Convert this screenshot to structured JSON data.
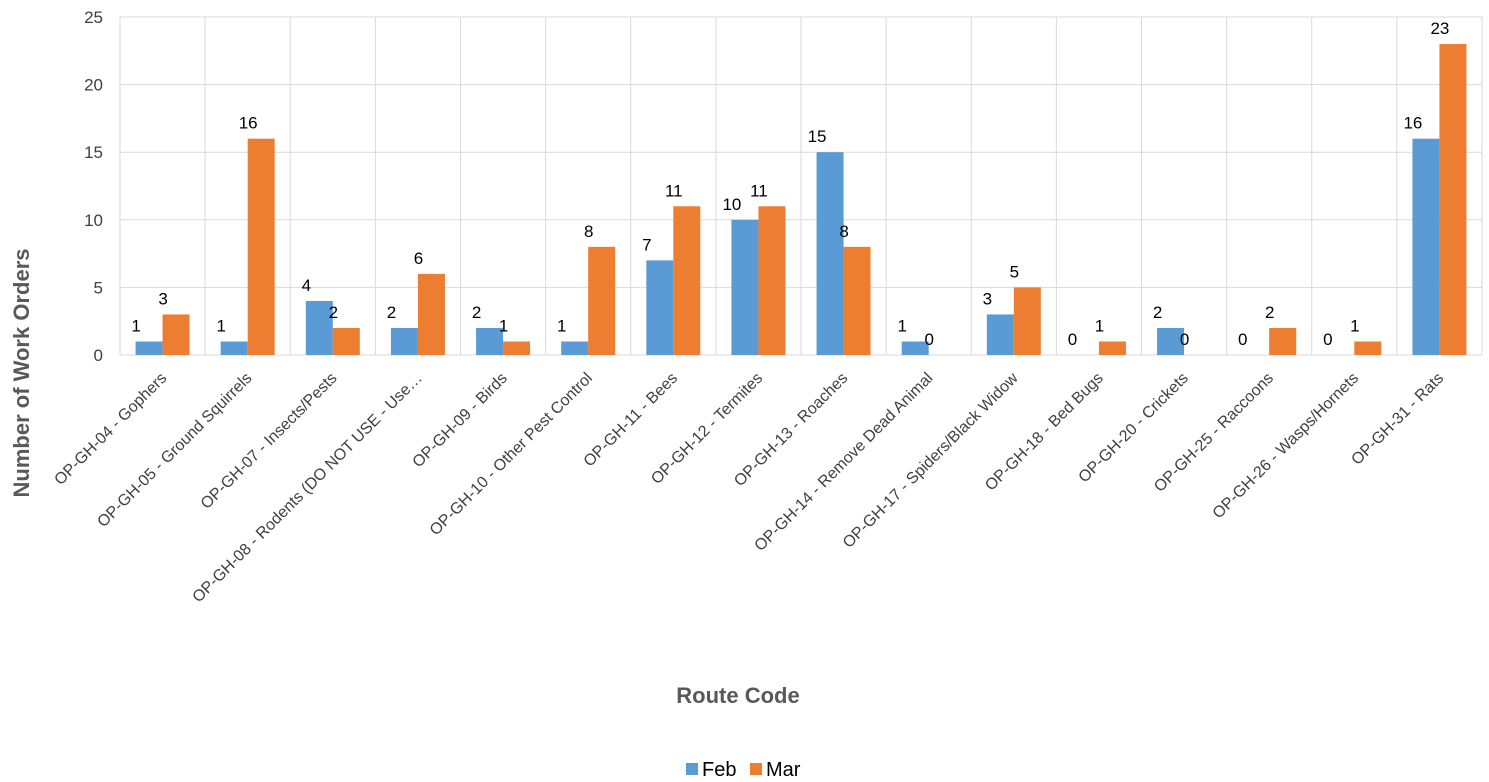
{
  "chart_data": {
    "type": "bar",
    "title": "",
    "xlabel": "Route Code",
    "ylabel": "Number of Work Orders",
    "ylim": [
      0,
      25
    ],
    "yticks": [
      0,
      5,
      10,
      15,
      20,
      25
    ],
    "grid": true,
    "legend_position": "bottom",
    "categories": [
      "OP-GH-04 - Gophers",
      "OP-GH-05 - Ground Squirrels",
      "OP-GH-07 - Insects/Pests",
      "OP-GH-08 - Rodents (DO NOT USE - Use…",
      "OP-GH-09 - Birds",
      "OP-GH-10 - Other Pest Control",
      "OP-GH-11 - Bees",
      "OP-GH-12 - Termites",
      "OP-GH-13 - Roaches",
      "OP-GH-14 - Remove Dead Animal",
      "OP-GH-17 - Spiders/Black Widow",
      "OP-GH-18 - Bed Bugs",
      "OP-GH-20 - Crickets",
      "OP-GH-25 - Raccoons",
      "OP-GH-26 - Wasps/Hornets",
      "OP-GH-31 - Rats"
    ],
    "series": [
      {
        "name": "Feb",
        "color": "#5B9BD5",
        "values": [
          1,
          1,
          4,
          2,
          2,
          1,
          7,
          10,
          15,
          1,
          3,
          0,
          2,
          0,
          0,
          16
        ]
      },
      {
        "name": "Mar",
        "color": "#ED7D31",
        "values": [
          3,
          16,
          2,
          6,
          1,
          8,
          11,
          11,
          8,
          0,
          5,
          1,
          0,
          2,
          1,
          23
        ]
      }
    ]
  }
}
